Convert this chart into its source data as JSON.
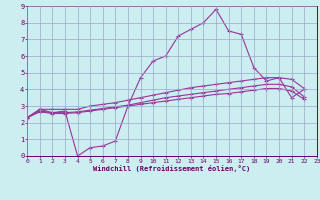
{
  "xlabel": "Windchill (Refroidissement éolien,°C)",
  "bg_color": "#cceef0",
  "line_color": "#993399",
  "grid_color": "#99aacc",
  "xmin": 0,
  "xmax": 23,
  "ymin": 0,
  "ymax": 9,
  "line1_y": [
    2.3,
    2.8,
    2.6,
    2.7,
    0.0,
    0.5,
    0.6,
    0.9,
    3.0,
    4.7,
    5.7,
    6.0,
    7.2,
    7.6,
    8.0,
    8.8,
    7.5,
    7.3,
    5.3,
    4.5,
    4.7,
    3.5,
    4.0,
    null
  ],
  "line2_y": [
    2.3,
    2.8,
    2.8,
    2.8,
    2.8,
    3.0,
    3.1,
    3.2,
    3.35,
    3.5,
    3.65,
    3.8,
    3.95,
    4.1,
    4.2,
    4.3,
    4.4,
    4.5,
    4.6,
    4.7,
    4.7,
    4.6,
    4.05,
    null
  ],
  "line3_y": [
    2.3,
    2.7,
    2.6,
    2.6,
    2.65,
    2.75,
    2.85,
    2.95,
    3.05,
    3.2,
    3.35,
    3.5,
    3.6,
    3.7,
    3.8,
    3.9,
    4.0,
    4.1,
    4.2,
    4.3,
    4.3,
    4.15,
    3.55,
    null
  ],
  "line4_y": [
    2.3,
    2.65,
    2.55,
    2.55,
    2.6,
    2.7,
    2.8,
    2.9,
    3.0,
    3.1,
    3.2,
    3.3,
    3.4,
    3.5,
    3.6,
    3.7,
    3.75,
    3.85,
    3.95,
    4.05,
    4.05,
    3.9,
    3.4,
    null
  ]
}
